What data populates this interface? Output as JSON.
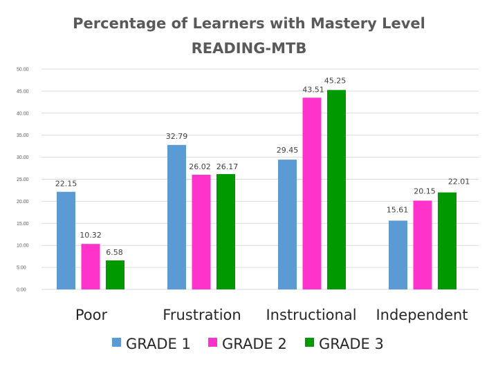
{
  "chart_data": {
    "type": "bar",
    "title": "Percentage of Learners with Mastery Level",
    "subtitle": "READING-MTB",
    "categories": [
      "Poor",
      "Frustration",
      "Instructional",
      "Independent"
    ],
    "series": [
      {
        "name": "GRADE 1",
        "color": "#5b9bd5",
        "values": [
          22.15,
          32.79,
          29.45,
          15.61
        ],
        "labels": [
          "22.15",
          "32.79",
          "29.45",
          "15.61"
        ]
      },
      {
        "name": "GRADE 2",
        "color": "#ff33cc",
        "values": [
          10.32,
          26.02,
          43.51,
          20.15
        ],
        "labels": [
          "10.32",
          "26.02",
          "43.51",
          "20.15"
        ]
      },
      {
        "name": "GRADE 3",
        "color": "#009900",
        "values": [
          6.58,
          26.17,
          45.25,
          22.01
        ],
        "labels": [
          "6.58",
          "26.17",
          "45.25",
          "22.01"
        ]
      }
    ],
    "ylim": [
      0,
      50
    ],
    "yticks": [
      "0.00",
      "5.00",
      "10.00",
      "15.00",
      "20.00",
      "25.00",
      "30.00",
      "35.00",
      "40.00",
      "45.00",
      "50.00"
    ],
    "grid": true,
    "legend": "bottom"
  }
}
